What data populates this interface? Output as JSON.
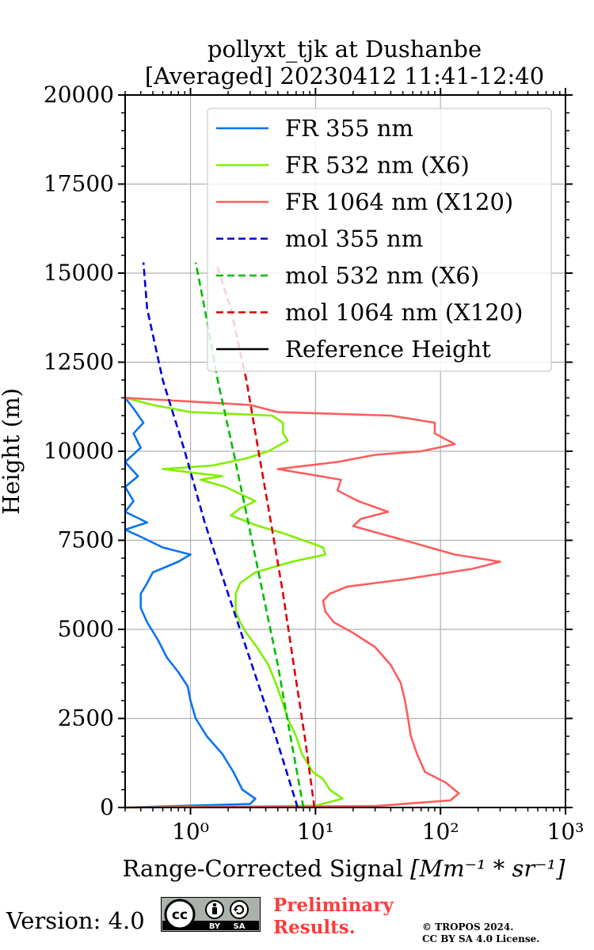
{
  "chart_data": {
    "type": "line",
    "title": [
      "pollyxt_tjk at Dushanbe",
      "[Averaged] 20230412 11:41-12:40"
    ],
    "xlabel": "Range-Corrected Signal",
    "xlabel_unit": "[Mm⁻¹ * sr⁻¹]",
    "ylabel": "Height (m)",
    "xscale": "log",
    "xlim": [
      0.3,
      1000
    ],
    "ylim": [
      0,
      20000
    ],
    "xticks": [
      {
        "value": 1,
        "label": "10⁰"
      },
      {
        "value": 10,
        "label": "10¹"
      },
      {
        "value": 100,
        "label": "10²"
      },
      {
        "value": 1000,
        "label": "10³"
      }
    ],
    "yticks": [
      0,
      2500,
      5000,
      7500,
      10000,
      12500,
      15000,
      17500,
      20000
    ],
    "grid": true,
    "legend_position": "top-right",
    "series": [
      {
        "name": "FR 355 nm",
        "color": "#0a74f0",
        "style": "solid",
        "points": [
          [
            0.3,
            0
          ],
          [
            3.0,
            100
          ],
          [
            3.3,
            250
          ],
          [
            2.6,
            500
          ],
          [
            2.2,
            1000
          ],
          [
            1.8,
            1500
          ],
          [
            1.35,
            2000
          ],
          [
            1.1,
            2500
          ],
          [
            1.0,
            3000
          ],
          [
            0.95,
            3400
          ],
          [
            0.8,
            3800
          ],
          [
            0.65,
            4200
          ],
          [
            0.55,
            4700
          ],
          [
            0.45,
            5200
          ],
          [
            0.4,
            5600
          ],
          [
            0.4,
            6000
          ],
          [
            0.45,
            6300
          ],
          [
            0.5,
            6600
          ],
          [
            0.8,
            6900
          ],
          [
            1.0,
            7100
          ],
          [
            0.6,
            7300
          ],
          [
            0.4,
            7600
          ],
          [
            0.3,
            7800
          ],
          [
            0.45,
            8000
          ],
          [
            0.3,
            8300
          ],
          [
            0.35,
            8600
          ],
          [
            0.3,
            9000
          ],
          [
            0.38,
            9300
          ],
          [
            0.3,
            9700
          ],
          [
            0.4,
            10100
          ],
          [
            0.35,
            10500
          ],
          [
            0.42,
            10800
          ],
          [
            0.35,
            11200
          ],
          [
            0.3,
            11500
          ]
        ]
      },
      {
        "name": "FR 532 nm (X6)",
        "color": "#7ff000",
        "style": "solid",
        "points": [
          [
            0.3,
            0
          ],
          [
            10,
            50
          ],
          [
            16.5,
            250
          ],
          [
            13,
            500
          ],
          [
            11.5,
            800
          ],
          [
            9.5,
            1000
          ],
          [
            7.8,
            1500
          ],
          [
            7.0,
            2000
          ],
          [
            6.0,
            2500
          ],
          [
            5.4,
            3000
          ],
          [
            4.8,
            3500
          ],
          [
            4.2,
            4000
          ],
          [
            3.4,
            4500
          ],
          [
            2.8,
            4900
          ],
          [
            2.5,
            5200
          ],
          [
            2.3,
            5500
          ],
          [
            2.3,
            6000
          ],
          [
            2.5,
            6300
          ],
          [
            3.3,
            6600
          ],
          [
            6.5,
            6900
          ],
          [
            12,
            7100
          ],
          [
            11.5,
            7300
          ],
          [
            8,
            7500
          ],
          [
            5.5,
            7700
          ],
          [
            3.5,
            7900
          ],
          [
            2.1,
            8200
          ],
          [
            2.5,
            8400
          ],
          [
            3.3,
            8600
          ],
          [
            2.5,
            8800
          ],
          [
            1.9,
            9000
          ],
          [
            1.2,
            9200
          ],
          [
            1.8,
            9300
          ],
          [
            0.6,
            9500
          ],
          [
            1.5,
            9600
          ],
          [
            2.8,
            9800
          ],
          [
            4.2,
            10000
          ],
          [
            6,
            10300
          ],
          [
            5.5,
            10500
          ],
          [
            5.5,
            10800
          ],
          [
            4.5,
            11000
          ],
          [
            1,
            11100
          ],
          [
            0.5,
            11300
          ],
          [
            0.3,
            11500
          ]
        ]
      },
      {
        "name": "FR 1064 nm (X120)",
        "color": "#ff5c5c",
        "style": "solid",
        "points": [
          [
            0.3,
            0
          ],
          [
            30,
            40
          ],
          [
            120,
            200
          ],
          [
            140,
            400
          ],
          [
            110,
            700
          ],
          [
            75,
            1000
          ],
          [
            65,
            1500
          ],
          [
            58,
            2000
          ],
          [
            55,
            2500
          ],
          [
            52,
            3000
          ],
          [
            48,
            3500
          ],
          [
            40,
            4000
          ],
          [
            30,
            4500
          ],
          [
            20,
            4900
          ],
          [
            14,
            5200
          ],
          [
            12,
            5500
          ],
          [
            11.5,
            5800
          ],
          [
            13,
            6000
          ],
          [
            18,
            6200
          ],
          [
            50,
            6400
          ],
          [
            180,
            6700
          ],
          [
            300,
            6900
          ],
          [
            130,
            7100
          ],
          [
            65,
            7400
          ],
          [
            32,
            7700
          ],
          [
            20,
            7900
          ],
          [
            23,
            8100
          ],
          [
            38,
            8300
          ],
          [
            22,
            8600
          ],
          [
            15,
            8900
          ],
          [
            16,
            9200
          ],
          [
            5,
            9500
          ],
          [
            15,
            9700
          ],
          [
            30,
            9900
          ],
          [
            70,
            10000
          ],
          [
            130,
            10200
          ],
          [
            90,
            10500
          ],
          [
            90,
            10800
          ],
          [
            40,
            11000
          ],
          [
            5,
            11100
          ],
          [
            3,
            11300
          ],
          [
            0.3,
            11500
          ]
        ]
      },
      {
        "name": "mol 355 nm",
        "color": "#0000dd",
        "style": "dashed",
        "points": [
          [
            7.2,
            0
          ],
          [
            4.8,
            2000
          ],
          [
            3.1,
            4000
          ],
          [
            2.0,
            6000
          ],
          [
            1.3,
            8000
          ],
          [
            0.9,
            10000
          ],
          [
            0.6,
            12000
          ],
          [
            0.45,
            14000
          ],
          [
            0.42,
            15300
          ]
        ]
      },
      {
        "name": "mol 532 nm (X6)",
        "color": "#00bb00",
        "style": "dashed",
        "points": [
          [
            8.0,
            0
          ],
          [
            6.3,
            2000
          ],
          [
            5.0,
            4000
          ],
          [
            3.8,
            6000
          ],
          [
            2.9,
            8000
          ],
          [
            2.2,
            10000
          ],
          [
            1.65,
            12000
          ],
          [
            1.3,
            14000
          ],
          [
            1.1,
            15300
          ]
        ]
      },
      {
        "name": "mol 1064 nm (X120)",
        "color": "#dd0000",
        "style": "dashed",
        "points": [
          [
            9.8,
            0
          ],
          [
            8.2,
            2000
          ],
          [
            6.7,
            4000
          ],
          [
            5.5,
            6000
          ],
          [
            4.4,
            8000
          ],
          [
            3.5,
            10000
          ],
          [
            2.8,
            12000
          ],
          [
            2.1,
            14000
          ],
          [
            1.6,
            15300
          ]
        ]
      },
      {
        "name": "Reference Height",
        "color": "#000000",
        "style": "solid",
        "points": []
      }
    ]
  },
  "footer": {
    "version_label": "Version: 4.0",
    "license_badge": {
      "cc": "cc",
      "by": "BY",
      "sa": "SA"
    },
    "preliminary_line1": "Preliminary",
    "preliminary_line2": "Results.",
    "copyright_line1": "© TROPOS 2024.",
    "copyright_line2": "CC BY SA 4.0 License."
  }
}
